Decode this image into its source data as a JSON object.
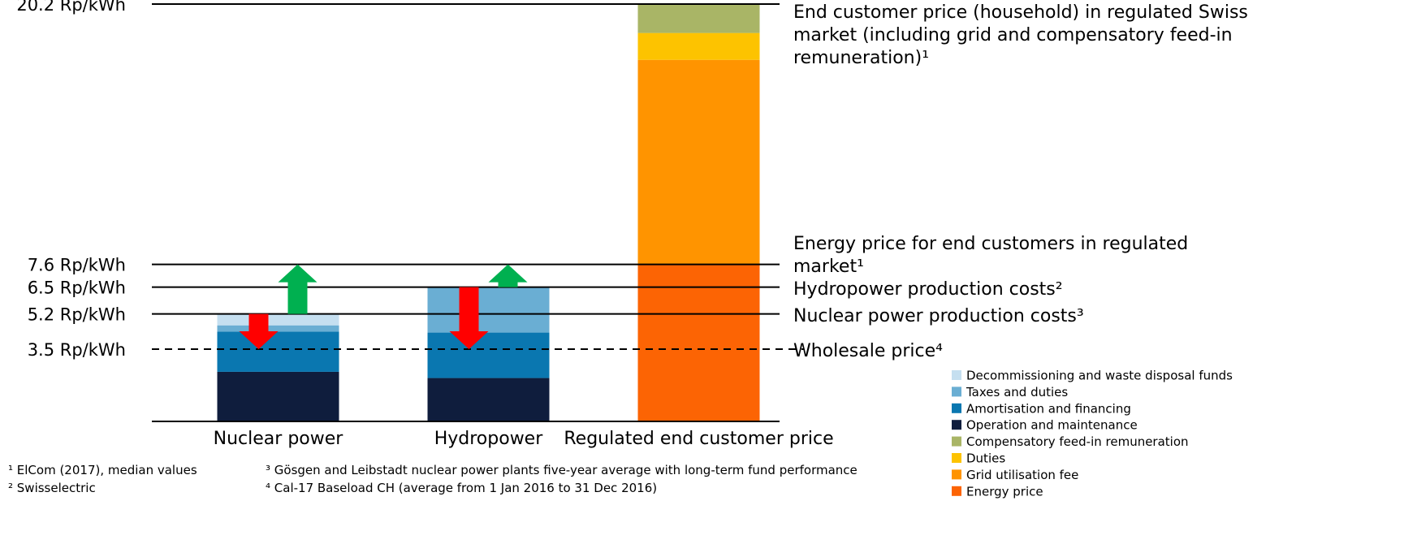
{
  "chart_data": {
    "type": "stacked_bar",
    "categories": [
      "Nuclear power",
      "Hydropower",
      "Regulated end customer price"
    ],
    "series": [
      {
        "name": "Decommissioning and waste disposal funds",
        "color": "#c5dff0",
        "values": [
          0.55,
          0,
          0
        ]
      },
      {
        "name": "Taxes and duties",
        "color": "#6aaed3",
        "values": [
          0.3,
          2.2,
          0
        ]
      },
      {
        "name": "Amortisation and financing",
        "color": "#0a77b0",
        "values": [
          1.95,
          2.2,
          0
        ]
      },
      {
        "name": "Operation and maintenance",
        "color": "#0f1d3d",
        "values": [
          2.4,
          2.1,
          0
        ]
      },
      {
        "name": "Compensatory feed-in remuneration",
        "color": "#a9b566",
        "values": [
          0,
          0,
          1.4
        ]
      },
      {
        "name": "Duties",
        "color": "#fdc300",
        "values": [
          0,
          0,
          1.3
        ]
      },
      {
        "name": "Grid utilisation fee",
        "color": "#ff9400",
        "values": [
          0,
          0,
          9.9
        ]
      },
      {
        "name": "Energy price",
        "color": "#fc6404",
        "values": [
          0,
          0,
          7.6
        ]
      }
    ],
    "ylim": [
      0,
      20.2
    ],
    "yticks": [
      {
        "value": 20.2,
        "label": "20.2 Rp/kWh"
      },
      {
        "value": 7.6,
        "label": "7.6 Rp/kWh"
      },
      {
        "value": 6.5,
        "label": "6.5 Rp/kWh"
      },
      {
        "value": 5.2,
        "label": "5.2 Rp/kWh"
      },
      {
        "value": 3.5,
        "label": "3.5 Rp/kWh"
      }
    ],
    "line_labels": [
      "End customer price (household) in regulated Swiss market (including grid and compensatory feed-in remuneration)¹",
      "Energy price for end customers in regulated market¹",
      "Hydropower production costs²",
      "Nuclear power production costs³",
      "Wholesale price⁴"
    ],
    "line_dash": [
      "solid",
      "solid",
      "solid",
      "solid",
      "dashed"
    ],
    "arrows": [
      [
        {
          "from": 5.2,
          "to": 3.5,
          "color": "#ff0000"
        },
        {
          "from": 5.2,
          "to": 7.6,
          "color": "#00b050"
        }
      ],
      [
        {
          "from": 6.5,
          "to": 3.5,
          "color": "#ff0000"
        },
        {
          "from": 6.5,
          "to": 7.6,
          "color": "#00b050"
        }
      ],
      []
    ],
    "footnotes": [
      "¹ ElCom (2017), median values",
      "² Swisselectric",
      "³ Gösgen and Leibstadt nuclear power plants five-year average with long-term fund performance",
      "⁴ Cal-17 Baseload CH (average from 1 Jan 2016 to 31 Dec 2016)"
    ]
  }
}
